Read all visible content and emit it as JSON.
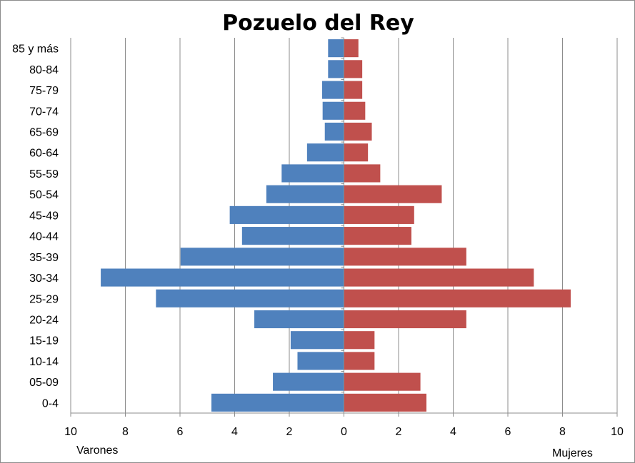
{
  "chart_data": {
    "type": "bar",
    "orientation": "horizontal",
    "layout": "population-pyramid",
    "title": "Pozuelo del Rey",
    "categories": [
      "0-4",
      "05-09",
      "10-14",
      "15-19",
      "20-24",
      "25-29",
      "30-34",
      "35-39",
      "40-44",
      "45-49",
      "50-54",
      "55-59",
      "60-64",
      "65-69",
      "70-74",
      "75-79",
      "80-84",
      "85 y más"
    ],
    "series": [
      {
        "name": "Varones",
        "color": "#4f81bd",
        "side": "left",
        "values": [
          4.85,
          2.6,
          1.7,
          1.95,
          3.28,
          6.88,
          8.9,
          5.98,
          3.73,
          4.18,
          2.84,
          2.28,
          1.35,
          0.7,
          0.78,
          0.8,
          0.58,
          0.58
        ]
      },
      {
        "name": "Mujeres",
        "color": "#c0504d",
        "side": "right",
        "values": [
          3.02,
          2.8,
          1.12,
          1.12,
          4.48,
          8.3,
          6.95,
          4.48,
          2.47,
          2.57,
          3.58,
          1.33,
          0.88,
          1.02,
          0.78,
          0.67,
          0.67,
          0.53
        ]
      }
    ],
    "xlim": [
      -10,
      10
    ],
    "xticks": [
      -10,
      -8,
      -6,
      -4,
      -2,
      0,
      2,
      4,
      6,
      8,
      10
    ],
    "xtick_labels": [
      "10",
      "8",
      "6",
      "4",
      "2",
      "0",
      "2",
      "4",
      "6",
      "8",
      "10"
    ],
    "xlabel_left": "Varones",
    "xlabel_right": "Mujeres",
    "grid": "vertical",
    "legend": "none"
  }
}
